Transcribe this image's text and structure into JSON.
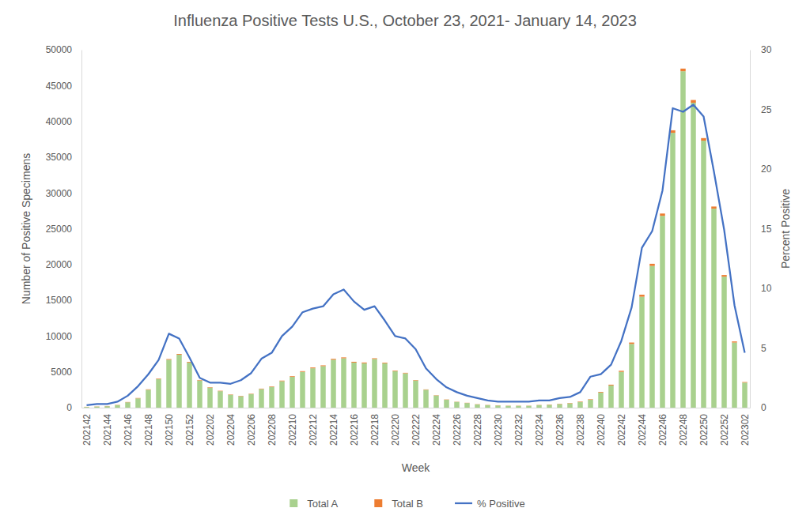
{
  "chart_data": {
    "type": "bar",
    "title": "Influenza Positive Tests U.S., October 23, 2021- January 14, 2023",
    "x_label": "Week",
    "y_label": "Number of Positive Specimens",
    "y2_label": "Percent Positive",
    "stacked": true,
    "legend": "bottom",
    "grid": false,
    "categories": [
      "202142",
      null,
      "202144",
      null,
      "202146",
      null,
      "202148",
      null,
      "202150",
      null,
      "202152",
      null,
      "202202",
      null,
      "202204",
      null,
      "202206",
      null,
      "202208",
      null,
      "202210",
      null,
      "202212",
      null,
      "202214",
      null,
      "202216",
      null,
      "202218",
      null,
      "202220",
      null,
      "202222",
      null,
      "202224",
      null,
      "202226",
      null,
      "202228",
      null,
      "202230",
      null,
      "202232",
      null,
      "202234",
      null,
      "202236",
      null,
      "202238",
      null,
      "202240",
      null,
      "202242",
      null,
      "202244",
      null,
      "202246",
      null,
      "202248",
      null,
      "202250",
      null,
      "202252",
      null,
      "202302"
    ],
    "series": [
      {
        "name": "Total A",
        "color": "#a9d18e",
        "values": [
          100,
          150,
          200,
          350,
          750,
          1300,
          2500,
          4000,
          6700,
          7400,
          6300,
          3800,
          2800,
          2300,
          1800,
          1600,
          1900,
          2600,
          2900,
          3700,
          4300,
          5000,
          5500,
          5800,
          6700,
          6900,
          6300,
          6200,
          6800,
          6200,
          5100,
          4800,
          3800,
          2500,
          1700,
          1100,
          800,
          650,
          450,
          350,
          300,
          250,
          250,
          250,
          350,
          400,
          500,
          600,
          800,
          1100,
          2100,
          3100,
          5000,
          8900,
          15500,
          19800,
          26800,
          38400,
          47000,
          42600,
          37300,
          27800,
          18300,
          9100,
          3500
        ]
      },
      {
        "name": "Total B",
        "color": "#ed7d31",
        "values": [
          20,
          25,
          30,
          35,
          40,
          50,
          60,
          70,
          90,
          100,
          90,
          70,
          60,
          60,
          50,
          50,
          50,
          60,
          70,
          80,
          90,
          100,
          110,
          110,
          120,
          120,
          110,
          110,
          100,
          90,
          80,
          70,
          60,
          50,
          40,
          40,
          30,
          30,
          30,
          30,
          30,
          30,
          30,
          30,
          30,
          40,
          40,
          50,
          60,
          70,
          90,
          110,
          150,
          200,
          280,
          300,
          320,
          350,
          370,
          380,
          360,
          300,
          230,
          150,
          80
        ]
      },
      {
        "name": "% Positive",
        "type": "line",
        "axis": "y2",
        "color": "#4472c4",
        "values": [
          0.2,
          0.3,
          0.3,
          0.5,
          1.0,
          1.8,
          2.8,
          4.0,
          6.2,
          5.8,
          4.2,
          2.5,
          2.1,
          2.1,
          2.0,
          2.3,
          2.9,
          4.1,
          4.6,
          6.0,
          6.8,
          8.0,
          8.3,
          8.5,
          9.5,
          9.9,
          8.9,
          8.2,
          8.5,
          7.3,
          6.0,
          5.8,
          4.9,
          3.3,
          2.4,
          1.7,
          1.3,
          1.0,
          0.8,
          0.6,
          0.5,
          0.5,
          0.5,
          0.5,
          0.6,
          0.6,
          0.8,
          0.9,
          1.3,
          2.6,
          2.8,
          3.6,
          5.6,
          8.4,
          13.4,
          14.8,
          18.2,
          25.1,
          24.8,
          25.4,
          24.4,
          19.8,
          14.9,
          8.6,
          4.6
        ]
      }
    ],
    "ylim": [
      0,
      50000
    ],
    "yticks": [
      0,
      5000,
      10000,
      15000,
      20000,
      25000,
      30000,
      35000,
      40000,
      45000,
      50000
    ],
    "y2lim": [
      0,
      30
    ],
    "y2ticks": [
      0,
      5,
      10,
      15,
      20,
      25,
      30
    ]
  }
}
